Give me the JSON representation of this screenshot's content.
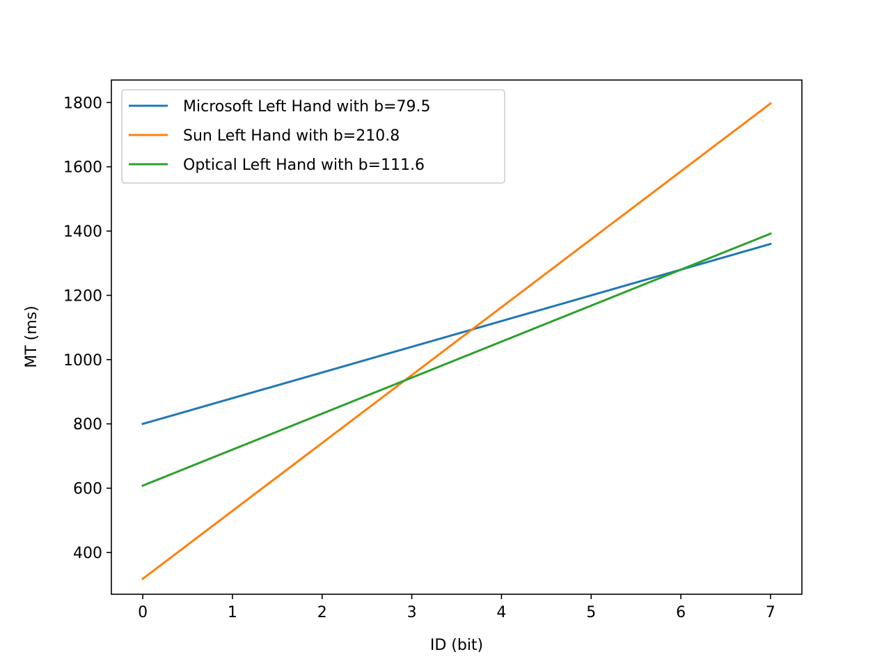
{
  "chart_data": {
    "type": "line",
    "xlabel": "ID (bit)",
    "ylabel": "MT (ms)",
    "xlim": [
      -0.35,
      7.35
    ],
    "ylim": [
      270,
      1870
    ],
    "xticks": [
      0,
      1,
      2,
      3,
      4,
      5,
      6,
      7
    ],
    "yticks": [
      400,
      600,
      800,
      1000,
      1200,
      1400,
      1600,
      1800
    ],
    "grid": false,
    "legend_position": "top-left",
    "series": [
      {
        "name": "Microsoft Left Hand with b=79.5",
        "color": "#1f77b4",
        "x": [
          0,
          7
        ],
        "y": [
          800,
          1360
        ]
      },
      {
        "name": "Sun Left Hand with b=210.8",
        "color": "#ff7f0e",
        "x": [
          0,
          7
        ],
        "y": [
          318,
          1797
        ]
      },
      {
        "name": "Optical Left Hand with b=111.6",
        "color": "#2ca02c",
        "x": [
          0,
          7
        ],
        "y": [
          608,
          1392
        ]
      }
    ]
  }
}
